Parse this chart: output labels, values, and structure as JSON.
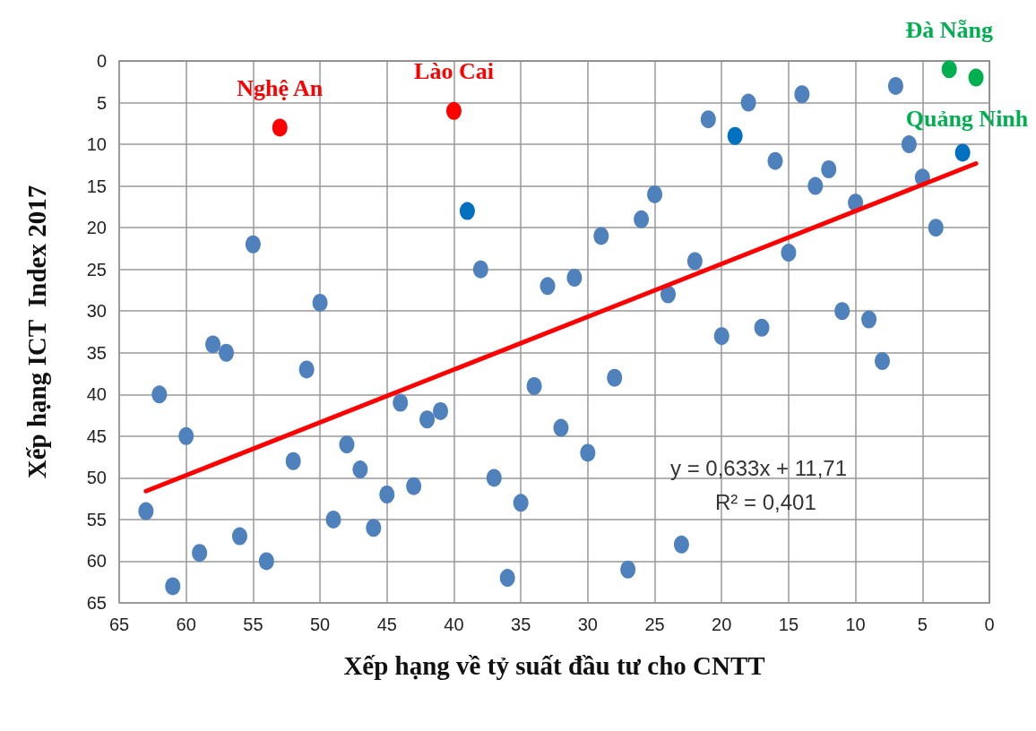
{
  "chart_data": {
    "type": "scatter",
    "xlabel": "Xếp hạng về tỷ suất đầu tư cho CNTT",
    "ylabel": "Xếp hạng ICT  Index 2017",
    "xlim": [
      65,
      0
    ],
    "xticks": [
      65,
      60,
      55,
      50,
      45,
      40,
      35,
      30,
      25,
      20,
      15,
      10,
      5,
      0
    ],
    "ylim": [
      65,
      0
    ],
    "yticks": [
      0,
      5,
      10,
      15,
      20,
      25,
      30,
      35,
      40,
      45,
      50,
      55,
      60,
      65
    ],
    "grid": true,
    "marker": "circle",
    "series": [
      {
        "color": "#4f81bd",
        "x": [
          55,
          50,
          58,
          57,
          62,
          51,
          60,
          44,
          48,
          52,
          47,
          45,
          63,
          49,
          46,
          56,
          59,
          54,
          61,
          42,
          41,
          34,
          28,
          32,
          30,
          37,
          43,
          35,
          23,
          27,
          36,
          38,
          33,
          31,
          29,
          26,
          25,
          24,
          22,
          21,
          18,
          14,
          16,
          12,
          13,
          10,
          7,
          6,
          5,
          4,
          15,
          11,
          9,
          20,
          17,
          8
        ],
        "values": [
          22,
          29,
          34,
          35,
          40,
          37,
          45,
          41,
          46,
          48,
          49,
          52,
          54,
          55,
          56,
          57,
          59,
          60,
          63,
          43,
          42,
          39,
          38,
          44,
          47,
          50,
          51,
          53,
          58,
          61,
          62,
          25,
          27,
          26,
          21,
          19,
          16,
          28,
          24,
          7,
          5,
          4,
          12,
          13,
          15,
          17,
          3,
          10,
          14,
          20,
          23,
          30,
          31,
          33,
          32,
          36
        ]
      },
      {
        "color": "#0070c0",
        "x": [
          39,
          19,
          2
        ],
        "values": [
          18,
          9,
          11
        ]
      },
      {
        "color": "#ff0000",
        "x": [
          53,
          40
        ],
        "values": [
          8,
          6
        ]
      },
      {
        "color": "#00b050",
        "x": [
          3,
          1
        ],
        "values": [
          1,
          2
        ]
      },
      {
        "type": "line",
        "color": "#ff0000",
        "marker": "none",
        "x": [
          63,
          1
        ],
        "values": [
          51.6,
          12.3
        ]
      }
    ],
    "annotations": [
      {
        "text": "Nghệ An",
        "x": 53,
        "y": 8
      },
      {
        "text": "Lào Cai",
        "x": 40,
        "y": 6
      },
      {
        "text": "Đà Nẵng",
        "x": 3,
        "y": 1
      },
      {
        "text": "Quảng Ninh",
        "x": 1,
        "y": 2
      },
      "y = 0,633x + 11,71",
      "R² = 0,401"
    ]
  }
}
